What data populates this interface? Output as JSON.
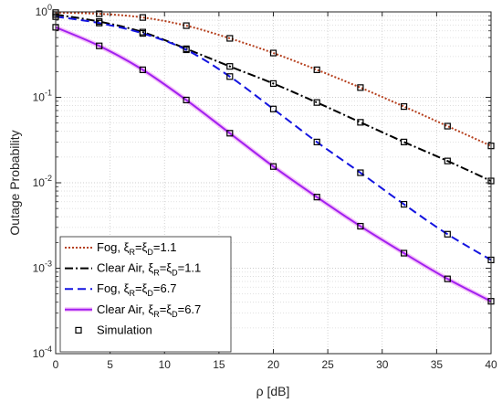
{
  "chart_data": {
    "type": "line",
    "title": "",
    "xlabel": "ρ [dB]",
    "ylabel": "Outage Probability",
    "xlim": [
      0,
      40
    ],
    "ylim": [
      0.0001,
      1
    ],
    "yscale": "log",
    "grid": true,
    "legend_position": "bottom-left",
    "x_ticks": [
      "0",
      "5",
      "10",
      "15",
      "20",
      "25",
      "30",
      "35",
      "40"
    ],
    "y_ticks": [
      {
        "base": "10",
        "exp": "0"
      },
      {
        "base": "10",
        "exp": "-1"
      },
      {
        "base": "10",
        "exp": "-2"
      },
      {
        "base": "10",
        "exp": "-3"
      },
      {
        "base": "10",
        "exp": "-4"
      }
    ],
    "x": [
      0,
      4,
      8,
      12,
      16,
      20,
      24,
      28,
      32,
      36,
      40
    ],
    "series": [
      {
        "legend": {
          "prefix": "Fog, ξ",
          "sub1": "R",
          "mid": "=ξ",
          "sub2": "D",
          "suffix": "=1.1"
        },
        "color": "#b5401e",
        "dash": "2,2",
        "style": "dotted",
        "values": [
          0.98,
          0.95,
          0.86,
          0.69,
          0.49,
          0.33,
          0.21,
          0.13,
          0.078,
          0.046,
          0.027
        ]
      },
      {
        "legend": {
          "prefix": "Clear Air, ξ",
          "sub1": "R",
          "mid": "=ξ",
          "sub2": "D",
          "suffix": "=1.1"
        },
        "color": "#000000",
        "dash": "9,3,2,3",
        "style": "dash-dot",
        "values": [
          0.93,
          0.77,
          0.58,
          0.37,
          0.23,
          0.145,
          0.087,
          0.051,
          0.03,
          0.018,
          0.0105
        ]
      },
      {
        "legend": {
          "prefix": "Fog, ξ",
          "sub1": "R",
          "mid": "=ξ",
          "sub2": "D",
          "suffix": "=6.7"
        },
        "color": "#1414e0",
        "dash": "9,5",
        "style": "dashed",
        "values": [
          0.88,
          0.74,
          0.56,
          0.36,
          0.175,
          0.073,
          0.03,
          0.0131,
          0.0056,
          0.0025,
          0.00125
        ]
      },
      {
        "legend": {
          "prefix": "Clear Air, ξ",
          "sub1": "R",
          "mid": "=ξ",
          "sub2": "D",
          "suffix": "=6.7"
        },
        "color": "#a020f0",
        "dash": "",
        "style": "solid",
        "values": [
          0.66,
          0.4,
          0.21,
          0.093,
          0.038,
          0.0155,
          0.0068,
          0.0031,
          0.0015,
          0.00075,
          0.00041
        ]
      }
    ],
    "simulation": {
      "legend": "Simulation",
      "marker": "square",
      "color": "#000000"
    }
  }
}
